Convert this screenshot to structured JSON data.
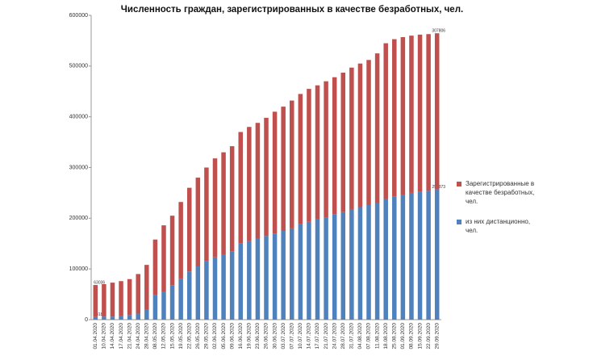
{
  "chart_data": {
    "type": "stacked_bar",
    "title": "Численность граждан, зарегистрированных в качестве безработных, чел.",
    "categories": [
      "01.04.2020",
      "10.04.2020",
      "14.04.2020",
      "17.04.2020",
      "21.04.2020",
      "24.04.2020",
      "28.04.2020",
      "08.05.2020",
      "12.05.2020",
      "15.05.2020",
      "19.05.2020",
      "22.05.2020",
      "26.05.2020",
      "29.05.2020",
      "02.06.2020",
      "05.06.2020",
      "09.06.2020",
      "16.06.2020",
      "19.06.2020",
      "23.06.2020",
      "26.06.2020",
      "30.06.2020",
      "03.07.2020",
      "07.07.2020",
      "10.07.2020",
      "14.07.2020",
      "17.07.2020",
      "21.07.2020",
      "24.07.2020",
      "28.07.2020",
      "31.07.2020",
      "04.08.2020",
      "07.08.2020",
      "11.08.2020",
      "18.08.2020",
      "25.08.2020",
      "01.09.2020",
      "08.09.2020",
      "15.09.2020",
      "22.09.2020",
      "29.09.2020"
    ],
    "series": [
      {
        "name": "из них дистанционно, чел.",
        "color": "#4f81bd",
        "values": [
          5318,
          6000,
          6000,
          7000,
          9000,
          12000,
          20000,
          48000,
          55000,
          68000,
          80000,
          95000,
          105000,
          115000,
          123000,
          128000,
          135000,
          150000,
          155000,
          160000,
          165000,
          170000,
          175000,
          180000,
          188000,
          193000,
          198000,
          202000,
          208000,
          212000,
          218000,
          222000,
          226000,
          230000,
          238000,
          243000,
          246000,
          250000,
          252000,
          254000,
          256873
        ],
        "value_labels": [
          "5318",
          null,
          null,
          null,
          null,
          null,
          null,
          null,
          null,
          null,
          null,
          null,
          null,
          null,
          null,
          null,
          null,
          null,
          null,
          null,
          null,
          null,
          null,
          null,
          null,
          null,
          null,
          null,
          null,
          null,
          null,
          null,
          null,
          null,
          null,
          null,
          null,
          null,
          null,
          null,
          "256873"
        ]
      },
      {
        "name": "Зарегистрированные в качестве безработных, чел.",
        "color": "#c0504d",
        "values": [
          63036,
          64000,
          67000,
          69000,
          71000,
          78000,
          88000,
          110000,
          131000,
          137000,
          152000,
          165000,
          175000,
          185000,
          195000,
          202000,
          207000,
          220000,
          225000,
          228000,
          233000,
          240000,
          245000,
          252000,
          257000,
          262000,
          264000,
          268000,
          270000,
          275000,
          279000,
          283000,
          286000,
          295000,
          307000,
          310000,
          311000,
          310000,
          310000,
          309000,
          307806
        ],
        "value_labels": [
          "63036",
          null,
          null,
          null,
          null,
          null,
          null,
          null,
          null,
          null,
          null,
          null,
          null,
          null,
          null,
          null,
          null,
          null,
          null,
          null,
          null,
          null,
          null,
          null,
          null,
          null,
          null,
          null,
          null,
          null,
          null,
          null,
          null,
          null,
          null,
          null,
          null,
          null,
          null,
          null,
          "307806"
        ]
      }
    ],
    "ylim": [
      0,
      600000
    ],
    "yticks": [
      0,
      100000,
      200000,
      300000,
      400000,
      500000,
      600000
    ],
    "grid": false,
    "legend": "right"
  }
}
